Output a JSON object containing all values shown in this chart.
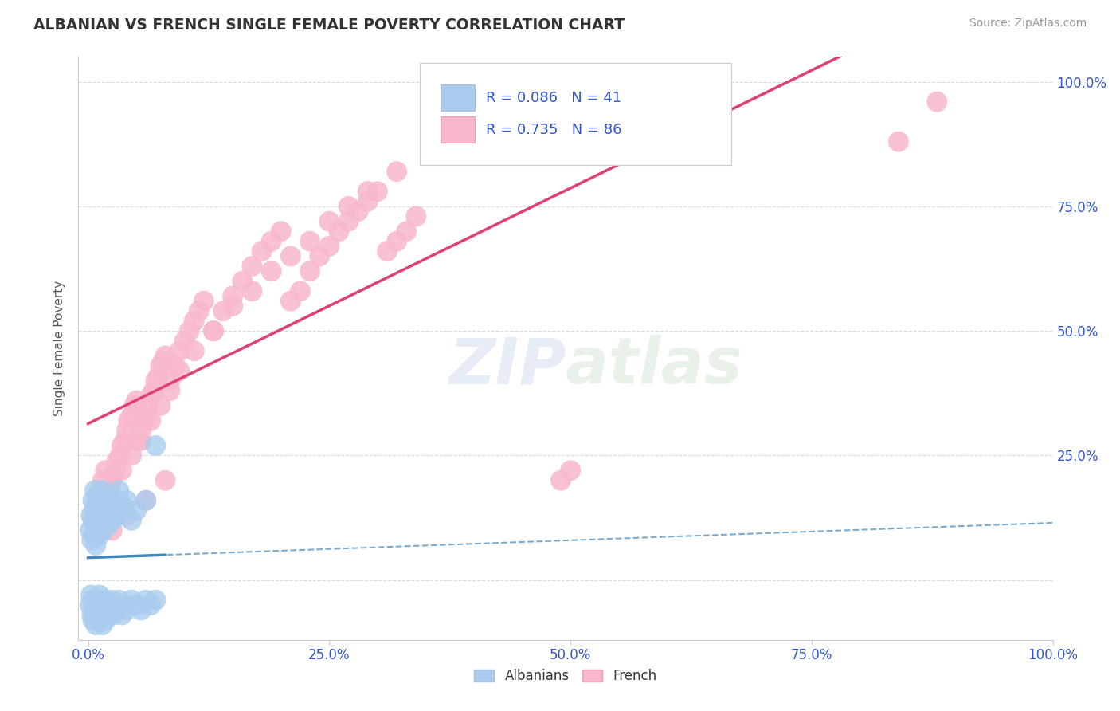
{
  "title": "ALBANIAN VS FRENCH SINGLE FEMALE POVERTY CORRELATION CHART",
  "source": "Source: ZipAtlas.com",
  "ylabel": "Single Female Poverty",
  "background_color": "#ffffff",
  "plot_bg_color": "#ffffff",
  "grid_color": "#d8d8d8",
  "title_color": "#333333",
  "source_color": "#999999",
  "albanian_color": "#aaccee",
  "albanian_edge": "#aaccee",
  "albanian_line_color": "#4488bb",
  "french_color": "#f8b8cc",
  "french_edge": "#f8b8cc",
  "french_line_color": "#e04070",
  "legend_r_color": "#3355cc",
  "axis_label_color": "#3355cc",
  "R_albanian": 0.086,
  "N_albanian": 41,
  "R_french": 0.735,
  "N_french": 86,
  "albanian_x": [
    0.002,
    0.003,
    0.004,
    0.005,
    0.005,
    0.006,
    0.006,
    0.007,
    0.007,
    0.008,
    0.008,
    0.009,
    0.01,
    0.01,
    0.011,
    0.012,
    0.012,
    0.013,
    0.014,
    0.015,
    0.015,
    0.016,
    0.017,
    0.018,
    0.019,
    0.02,
    0.021,
    0.022,
    0.024,
    0.025,
    0.026,
    0.028,
    0.03,
    0.032,
    0.035,
    0.038,
    0.04,
    0.045,
    0.05,
    0.06,
    0.07
  ],
  "albanian_y": [
    0.1,
    0.13,
    0.08,
    0.12,
    0.16,
    0.09,
    0.14,
    0.11,
    0.18,
    0.07,
    0.15,
    0.13,
    0.1,
    0.17,
    0.12,
    0.09,
    0.16,
    0.14,
    0.11,
    0.13,
    0.18,
    0.1,
    0.15,
    0.12,
    0.16,
    0.14,
    0.11,
    0.13,
    0.17,
    0.15,
    0.12,
    0.16,
    0.13,
    0.18,
    0.15,
    0.14,
    0.16,
    0.12,
    0.14,
    0.16,
    0.27
  ],
  "albanian_below_x": [
    0.002,
    0.003,
    0.004,
    0.005,
    0.005,
    0.006,
    0.007,
    0.008,
    0.009,
    0.01,
    0.01,
    0.011,
    0.012,
    0.013,
    0.014,
    0.015,
    0.016,
    0.017,
    0.018,
    0.019,
    0.02,
    0.022,
    0.024,
    0.026,
    0.028,
    0.03,
    0.032,
    0.035,
    0.038,
    0.04,
    0.045,
    0.05,
    0.055,
    0.06,
    0.065,
    0.07
  ],
  "albanian_below_y": [
    -0.05,
    -0.03,
    -0.07,
    -0.04,
    -0.08,
    -0.06,
    -0.05,
    -0.09,
    -0.07,
    -0.04,
    -0.08,
    -0.06,
    -0.03,
    -0.07,
    -0.05,
    -0.09,
    -0.06,
    -0.04,
    -0.08,
    -0.05,
    -0.07,
    -0.06,
    -0.04,
    -0.07,
    -0.05,
    -0.06,
    -0.04,
    -0.07,
    -0.05,
    -0.06,
    -0.04,
    -0.05,
    -0.06,
    -0.04,
    -0.05,
    -0.04
  ],
  "french_x": [
    0.005,
    0.01,
    0.012,
    0.015,
    0.018,
    0.02,
    0.022,
    0.025,
    0.028,
    0.03,
    0.033,
    0.035,
    0.038,
    0.04,
    0.042,
    0.045,
    0.048,
    0.05,
    0.052,
    0.055,
    0.058,
    0.06,
    0.063,
    0.065,
    0.068,
    0.07,
    0.073,
    0.075,
    0.078,
    0.08,
    0.085,
    0.09,
    0.095,
    0.1,
    0.105,
    0.11,
    0.115,
    0.12,
    0.13,
    0.14,
    0.15,
    0.16,
    0.17,
    0.18,
    0.19,
    0.2,
    0.21,
    0.22,
    0.23,
    0.24,
    0.25,
    0.26,
    0.27,
    0.28,
    0.29,
    0.3,
    0.31,
    0.32,
    0.33,
    0.34,
    0.035,
    0.045,
    0.055,
    0.065,
    0.075,
    0.085,
    0.095,
    0.11,
    0.13,
    0.15,
    0.17,
    0.19,
    0.21,
    0.23,
    0.25,
    0.27,
    0.29,
    0.32,
    0.025,
    0.04,
    0.06,
    0.08,
    0.49,
    0.5,
    0.84,
    0.88
  ],
  "french_y": [
    0.12,
    0.15,
    0.18,
    0.2,
    0.22,
    0.15,
    0.18,
    0.2,
    0.22,
    0.24,
    0.25,
    0.27,
    0.28,
    0.3,
    0.32,
    0.33,
    0.35,
    0.36,
    0.28,
    0.3,
    0.32,
    0.33,
    0.35,
    0.37,
    0.38,
    0.4,
    0.41,
    0.43,
    0.44,
    0.45,
    0.4,
    0.43,
    0.46,
    0.48,
    0.5,
    0.52,
    0.54,
    0.56,
    0.5,
    0.54,
    0.57,
    0.6,
    0.63,
    0.66,
    0.68,
    0.7,
    0.56,
    0.58,
    0.62,
    0.65,
    0.67,
    0.7,
    0.72,
    0.74,
    0.76,
    0.78,
    0.66,
    0.68,
    0.7,
    0.73,
    0.22,
    0.25,
    0.28,
    0.32,
    0.35,
    0.38,
    0.42,
    0.46,
    0.5,
    0.55,
    0.58,
    0.62,
    0.65,
    0.68,
    0.72,
    0.75,
    0.78,
    0.82,
    0.1,
    0.13,
    0.16,
    0.2,
    0.2,
    0.22,
    0.88,
    0.96
  ],
  "xlim": [
    -0.01,
    1.0
  ],
  "ylim": [
    -0.12,
    1.05
  ],
  "xticks": [
    0.0,
    0.25,
    0.5,
    0.75,
    1.0
  ],
  "xtick_labels": [
    "0.0%",
    "25.0%",
    "50.0%",
    "75.0%",
    "100.0%"
  ],
  "yticks": [
    0.0,
    0.25,
    0.5,
    0.75,
    1.0
  ],
  "ytick_labels_right": [
    "",
    "25.0%",
    "50.0%",
    "75.0%",
    "100.0%"
  ]
}
